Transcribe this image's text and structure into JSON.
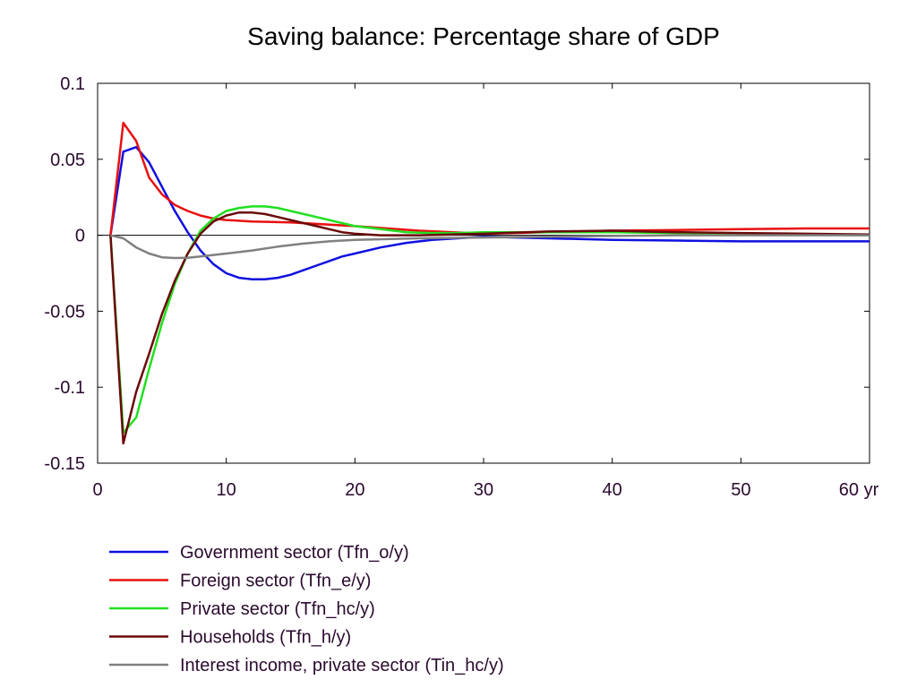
{
  "chart_data": {
    "type": "line",
    "title": "Saving balance: Percentage share of GDP",
    "xlabel": "",
    "ylabel": "",
    "xlim": [
      0,
      60
    ],
    "ylim": [
      -0.15,
      0.1
    ],
    "x_ticks": [
      "0",
      "10",
      "20",
      "30",
      "40",
      "50",
      "60 yr"
    ],
    "y_ticks": [
      "0.1",
      "0.05",
      "0",
      "-0.05",
      "-0.1",
      "-0.15"
    ],
    "grid": false,
    "legend_position": "bottom-left",
    "series": [
      {
        "name": "Government sector (Tfn_o/y)",
        "color": "#1010e0",
        "points": [
          [
            1,
            0
          ],
          [
            2,
            0.055
          ],
          [
            3,
            0.058
          ],
          [
            4,
            0.048
          ],
          [
            5,
            0.032
          ],
          [
            6,
            0.016
          ],
          [
            7,
            0.002
          ],
          [
            8,
            -0.01
          ],
          [
            9,
            -0.019
          ],
          [
            10,
            -0.025
          ],
          [
            11,
            -0.028
          ],
          [
            12,
            -0.029
          ],
          [
            13,
            -0.029
          ],
          [
            14,
            -0.028
          ],
          [
            15,
            -0.026
          ],
          [
            16,
            -0.023
          ],
          [
            17,
            -0.02
          ],
          [
            18,
            -0.017
          ],
          [
            19,
            -0.014
          ],
          [
            20,
            -0.012
          ],
          [
            22,
            -0.008
          ],
          [
            24,
            -0.005
          ],
          [
            26,
            -0.003
          ],
          [
            28,
            -0.002
          ],
          [
            30,
            -0.001
          ],
          [
            35,
            -0.002
          ],
          [
            40,
            -0.003
          ],
          [
            45,
            -0.0035
          ],
          [
            50,
            -0.004
          ],
          [
            55,
            -0.004
          ],
          [
            60,
            -0.004
          ]
        ]
      },
      {
        "name": "Foreign sector (Tfn_e/y)",
        "color": "#e81010",
        "points": [
          [
            1,
            0
          ],
          [
            2,
            0.074
          ],
          [
            3,
            0.062
          ],
          [
            4,
            0.038
          ],
          [
            5,
            0.027
          ],
          [
            6,
            0.02
          ],
          [
            7,
            0.016
          ],
          [
            8,
            0.013
          ],
          [
            9,
            0.011
          ],
          [
            10,
            0.01
          ],
          [
            12,
            0.009
          ],
          [
            15,
            0.0085
          ],
          [
            20,
            0.006
          ],
          [
            25,
            0.003
          ],
          [
            30,
            0.001
          ],
          [
            35,
            0.002
          ],
          [
            40,
            0.003
          ],
          [
            45,
            0.0035
          ],
          [
            50,
            0.004
          ],
          [
            55,
            0.0045
          ],
          [
            60,
            0.0045
          ]
        ]
      },
      {
        "name": "Private sector (Tfn_hc/y)",
        "color": "#20e020",
        "points": [
          [
            1,
            0
          ],
          [
            2,
            -0.13
          ],
          [
            3,
            -0.12
          ],
          [
            4,
            -0.088
          ],
          [
            5,
            -0.058
          ],
          [
            6,
            -0.032
          ],
          [
            7,
            -0.012
          ],
          [
            8,
            0.003
          ],
          [
            9,
            0.011
          ],
          [
            10,
            0.016
          ],
          [
            11,
            0.018
          ],
          [
            12,
            0.019
          ],
          [
            13,
            0.019
          ],
          [
            14,
            0.018
          ],
          [
            15,
            0.016
          ],
          [
            16,
            0.014
          ],
          [
            17,
            0.012
          ],
          [
            18,
            0.01
          ],
          [
            19,
            0.008
          ],
          [
            20,
            0.006
          ],
          [
            22,
            0.004
          ],
          [
            24,
            0.002
          ],
          [
            26,
            0.0015
          ],
          [
            28,
            0.0015
          ],
          [
            30,
            0.002
          ],
          [
            35,
            0.002
          ],
          [
            40,
            0.002
          ],
          [
            45,
            0.0015
          ],
          [
            50,
            0.001
          ],
          [
            55,
            0.0005
          ],
          [
            60,
            0
          ]
        ]
      },
      {
        "name": "Households (Tfn_h/y)",
        "color": "#6a0a0a",
        "points": [
          [
            1,
            0
          ],
          [
            2,
            -0.137
          ],
          [
            3,
            -0.103
          ],
          [
            4,
            -0.078
          ],
          [
            5,
            -0.052
          ],
          [
            6,
            -0.03
          ],
          [
            7,
            -0.012
          ],
          [
            8,
            0.001
          ],
          [
            9,
            0.009
          ],
          [
            10,
            0.013
          ],
          [
            11,
            0.015
          ],
          [
            12,
            0.015
          ],
          [
            13,
            0.014
          ],
          [
            14,
            0.012
          ],
          [
            15,
            0.01
          ],
          [
            16,
            0.008
          ],
          [
            17,
            0.006
          ],
          [
            18,
            0.004
          ],
          [
            19,
            0.002
          ],
          [
            20,
            0.001
          ],
          [
            22,
            0
          ],
          [
            25,
            0
          ],
          [
            30,
            0.001
          ],
          [
            35,
            0.0025
          ],
          [
            40,
            0.003
          ],
          [
            45,
            0.002
          ],
          [
            50,
            0.0015
          ],
          [
            55,
            0.001
          ],
          [
            60,
            0.0005
          ]
        ]
      },
      {
        "name": "Interest income, private sector (Tin_hc/y)",
        "color": "#808080",
        "points": [
          [
            1,
            0
          ],
          [
            2,
            -0.002
          ],
          [
            3,
            -0.008
          ],
          [
            4,
            -0.012
          ],
          [
            5,
            -0.0145
          ],
          [
            6,
            -0.015
          ],
          [
            7,
            -0.0148
          ],
          [
            8,
            -0.014
          ],
          [
            9,
            -0.013
          ],
          [
            10,
            -0.012
          ],
          [
            12,
            -0.01
          ],
          [
            14,
            -0.0075
          ],
          [
            16,
            -0.0055
          ],
          [
            18,
            -0.004
          ],
          [
            20,
            -0.003
          ],
          [
            25,
            -0.002
          ],
          [
            30,
            -0.0015
          ],
          [
            35,
            -0.001
          ],
          [
            40,
            -0.0005
          ],
          [
            45,
            0
          ],
          [
            50,
            0
          ],
          [
            55,
            0
          ],
          [
            60,
            0
          ]
        ]
      }
    ]
  }
}
